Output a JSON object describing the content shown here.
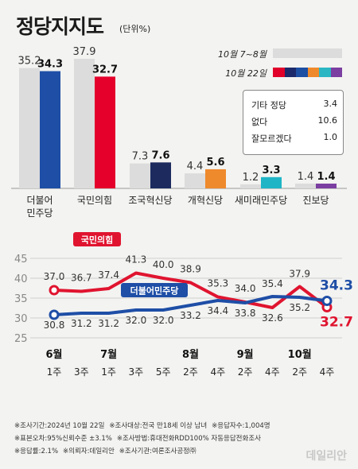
{
  "header": {
    "title": "정당지지도",
    "unit": "(단위%)"
  },
  "legend": {
    "prev_label": "10월 7~8월",
    "curr_label": "10월 22일",
    "prev_color": "#dcdcdc",
    "curr_colors": [
      "#e0002a",
      "#1c2a6b",
      "#1d4fa3",
      "#ef8a2c",
      "#2bb6c4",
      "#7b3ea1"
    ]
  },
  "others": [
    {
      "label": "기타 정당",
      "value": "3.4"
    },
    {
      "label": "없다",
      "value": "10.6"
    },
    {
      "label": "잘모르겠다",
      "value": "1.0"
    }
  ],
  "chart_data": [
    {
      "type": "bar",
      "categories": [
        "더불어\n민주당",
        "국민의힘",
        "조국혁신당",
        "개혁신당",
        "새미래민주당",
        "진보당"
      ],
      "series": [
        {
          "name": "10월 7~8월",
          "values": [
            35.2,
            37.9,
            7.3,
            4.4,
            1.2,
            1.4
          ]
        },
        {
          "name": "10월 22일",
          "values": [
            34.3,
            32.7,
            7.6,
            5.6,
            3.3,
            1.4
          ]
        }
      ],
      "colors": [
        "#1e4ea6",
        "#e4002b",
        "#1c2a5e",
        "#ef8a2c",
        "#1fb5c6",
        "#7b3ea1"
      ]
    },
    {
      "type": "line",
      "x": [
        "6월 1주",
        "3주",
        "7월 1주",
        "3주",
        "5주",
        "8월 2주",
        "4주",
        "9월 2주",
        "4주",
        "10월 2주",
        "4주"
      ],
      "months": [
        {
          "label": "6월",
          "index": 0
        },
        {
          "label": "7월",
          "index": 2
        },
        {
          "label": "8월",
          "index": 5
        },
        {
          "label": "9월",
          "index": 7
        },
        {
          "label": "10월",
          "index": 9
        }
      ],
      "weeks": [
        "1주",
        "3주",
        "1주",
        "3주",
        "5주",
        "2주",
        "4주",
        "2주",
        "4주",
        "2주",
        "4주"
      ],
      "series": [
        {
          "name": "국민의힘",
          "color": "#e0142f",
          "values": [
            37.0,
            36.7,
            37.4,
            41.3,
            40.0,
            38.9,
            35.3,
            34.0,
            32.6,
            37.9,
            32.7
          ]
        },
        {
          "name": "더불어민주당",
          "color": "#1e4ea6",
          "values": [
            30.8,
            31.2,
            31.2,
            32.0,
            32.0,
            33.2,
            34.4,
            33.8,
            35.4,
            35.2,
            34.3
          ]
        }
      ],
      "yticks": [
        25,
        30,
        35,
        40,
        45
      ],
      "ylim": [
        25,
        45
      ]
    }
  ],
  "footer": {
    "lines": [
      [
        "※조사기간:2024년 10월 22일",
        "※조사대상:전국 만18세 이상 남녀",
        "※응답자수:1,004명"
      ],
      [
        "※표본오차:95%신뢰수준 ±3.1%",
        "※조사방법:휴대전화RDD100% 자동응답전화조사"
      ],
      [
        "※응답률:2.1%",
        "※의뢰자:데일리안",
        "※조사기관:여론조사공정㈜"
      ]
    ],
    "brand": "데일리안"
  }
}
